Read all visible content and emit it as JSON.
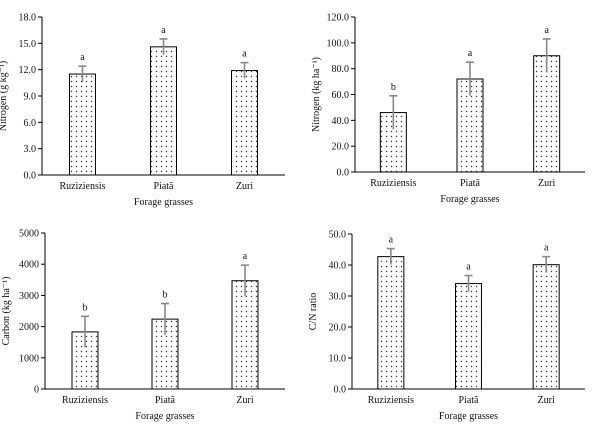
{
  "chart_data": [
    {
      "type": "bar",
      "categories": [
        "Ruziziensis",
        "Piatã",
        "Zuri"
      ],
      "values": [
        11.5,
        14.6,
        11.9
      ],
      "errors": [
        0.9,
        0.9,
        0.9
      ],
      "letters": [
        "a",
        "a",
        "a"
      ],
      "xlabel": "Forage grasses",
      "ylabel": "Nitrogen (g kg⁻¹)",
      "ylim": [
        0,
        18
      ],
      "yticks": [
        "0.0",
        "3.0",
        "6.0",
        "9.0",
        "12.0",
        "15.0",
        "18.0"
      ]
    },
    {
      "type": "bar",
      "categories": [
        "Ruziziensis",
        "Piatã",
        "Zuri"
      ],
      "values": [
        46,
        72,
        90
      ],
      "errors": [
        13,
        13,
        13
      ],
      "letters": [
        "b",
        "a",
        "a"
      ],
      "xlabel": "Forage grasses",
      "ylabel": "Nitrogen (kg ha⁻¹)",
      "ylim": [
        0,
        120
      ],
      "yticks": [
        "0.0",
        "20.0",
        "40.0",
        "60.0",
        "80.0",
        "100.0",
        "120.0"
      ]
    },
    {
      "type": "bar",
      "categories": [
        "Ruziziensis",
        "Piatã",
        "Zuri"
      ],
      "values": [
        1830,
        2240,
        3470
      ],
      "errors": [
        500,
        500,
        500
      ],
      "letters": [
        "b",
        "b",
        "a"
      ],
      "xlabel": "Forage grasses",
      "ylabel": "Carbon (kg ha⁻¹)",
      "ylim": [
        0,
        5000
      ],
      "yticks": [
        "0",
        "1000",
        "2000",
        "3000",
        "4000",
        "5000"
      ]
    },
    {
      "type": "bar",
      "categories": [
        "Ruziziensis",
        "Piatã",
        "Zuri"
      ],
      "values": [
        42.7,
        34.0,
        40.1
      ],
      "errors": [
        2.6,
        2.6,
        2.6
      ],
      "letters": [
        "a",
        "a",
        "a"
      ],
      "xlabel": "Forage grasses",
      "ylabel": "C/N ratio",
      "ylim": [
        0,
        50
      ],
      "yticks": [
        "0.0",
        "10.0",
        "20.0",
        "30.0",
        "40.0",
        "50.0"
      ]
    }
  ]
}
